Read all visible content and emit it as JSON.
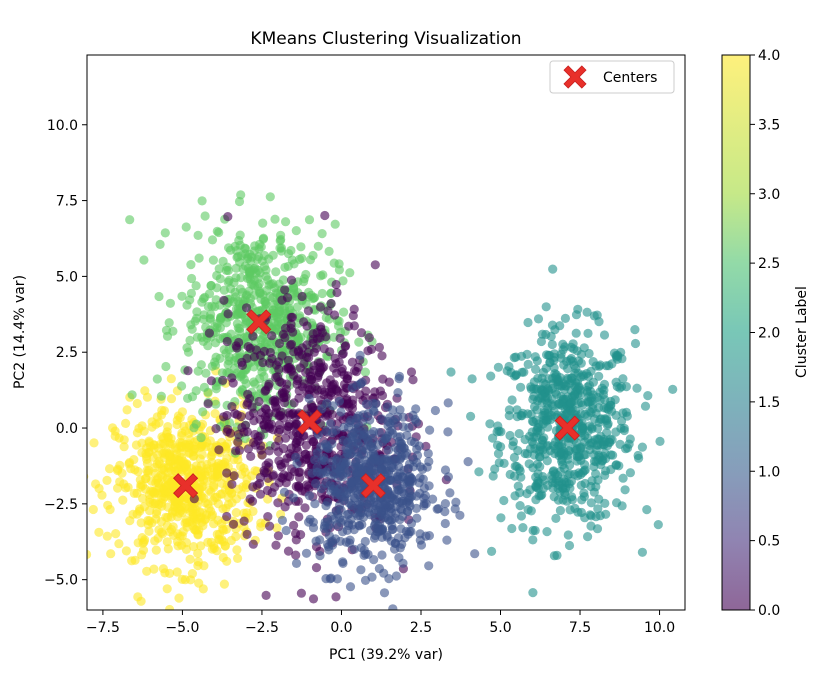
{
  "chart_data": {
    "type": "scatter",
    "title": "KMeans Clustering Visualization",
    "xlabel": "PC1 (39.2% var)",
    "ylabel": "PC2 (14.4% var)",
    "xlim": [
      -8.0,
      10.8
    ],
    "ylim": [
      -6.0,
      12.3
    ],
    "xticks": [
      -7.5,
      -5.0,
      -2.5,
      0.0,
      2.5,
      5.0,
      7.5,
      10.0
    ],
    "xtick_labels": [
      "−7.5",
      "−5.0",
      "−2.5",
      "0.0",
      "2.5",
      "5.0",
      "7.5",
      "10.0"
    ],
    "yticks": [
      -5.0,
      -2.5,
      0.0,
      2.5,
      5.0,
      7.5,
      10.0
    ],
    "ytick_labels": [
      "−5.0",
      "−2.5",
      "0.0",
      "2.5",
      "5.0",
      "7.5",
      "10.0"
    ],
    "grid": false,
    "legend": {
      "position": "top-right",
      "entries": [
        "Centers"
      ]
    },
    "colorbar": {
      "label": "Cluster Label",
      "range": [
        0.0,
        4.0
      ],
      "ticks": [
        0.0,
        0.5,
        1.0,
        1.5,
        2.0,
        2.5,
        3.0,
        3.5,
        4.0
      ],
      "tick_labels": [
        "0.0",
        "0.5",
        "1.0",
        "1.5",
        "2.0",
        "2.5",
        "3.0",
        "3.5",
        "4.0"
      ],
      "colormap": "viridis",
      "alpha": 0.6
    },
    "clusters": [
      {
        "label": 0,
        "color": "#440154",
        "center": [
          -1.0,
          0.2
        ],
        "spread": [
          1.3,
          1.9
        ],
        "n": 650
      },
      {
        "label": 1,
        "color": "#3b528b",
        "center": [
          1.0,
          -1.9
        ],
        "spread": [
          1.0,
          1.3
        ],
        "n": 600
      },
      {
        "label": 2,
        "color": "#21918c",
        "center": [
          7.1,
          0.0
        ],
        "spread": [
          1.05,
          1.6
        ],
        "n": 650
      },
      {
        "label": 3,
        "color": "#5ec962",
        "center": [
          -2.6,
          3.5
        ],
        "spread": [
          1.2,
          1.6
        ],
        "n": 650
      },
      {
        "label": 4,
        "color": "#fde725",
        "center": [
          -4.9,
          -1.9
        ],
        "spread": [
          1.1,
          1.3
        ],
        "n": 650
      }
    ],
    "centers": [
      {
        "x": -1.0,
        "y": 0.2
      },
      {
        "x": 1.0,
        "y": -1.9
      },
      {
        "x": 7.1,
        "y": 0.0
      },
      {
        "x": -2.6,
        "y": 3.5
      },
      {
        "x": -4.9,
        "y": -1.9
      }
    ],
    "center_color": "#e8302a"
  }
}
